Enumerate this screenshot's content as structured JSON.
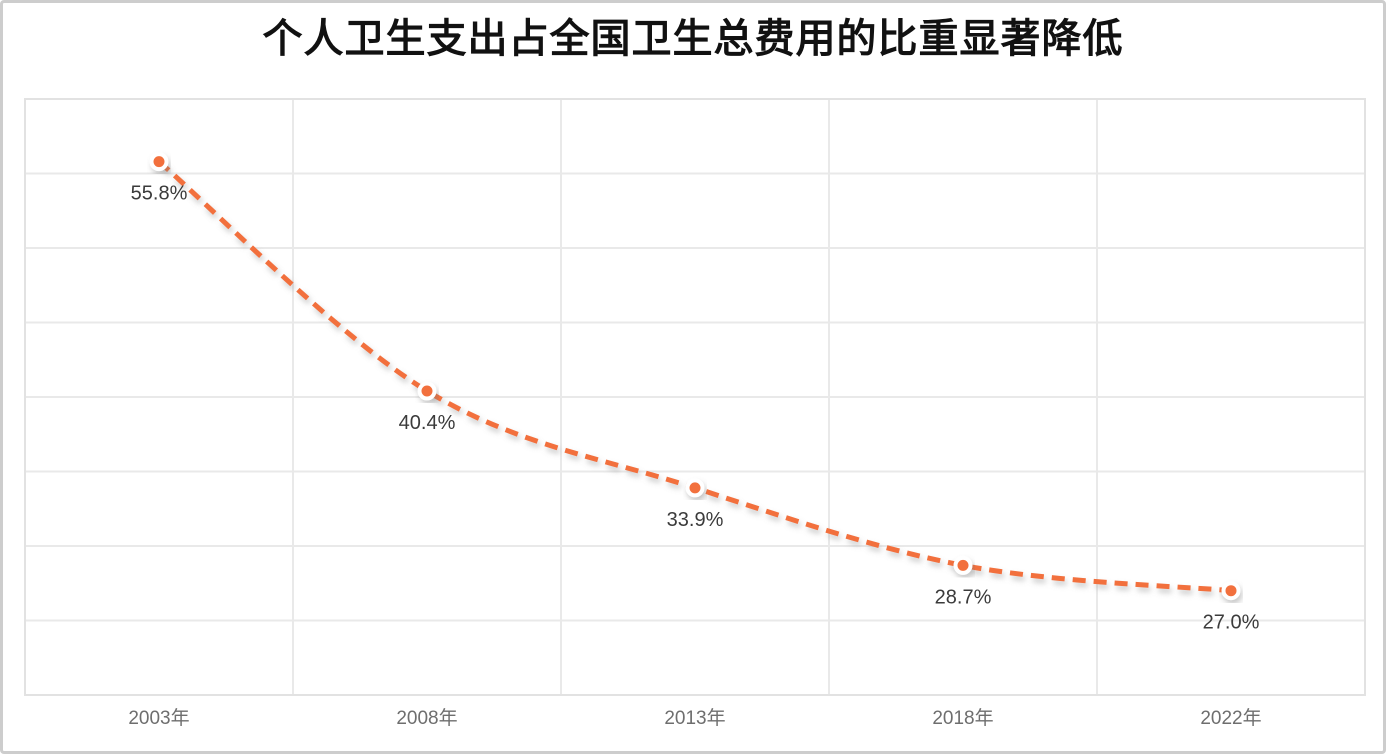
{
  "figure": {
    "title": "个人卫生支出占全国卫生总费用的比重显著降低"
  },
  "chart_data": {
    "type": "line",
    "line_style": "dashed-smooth",
    "title": "个人卫生支出占全国卫生总费用的比重显著降低",
    "categories": [
      "2003年",
      "2008年",
      "2013年",
      "2018年",
      "2022年"
    ],
    "series": [
      {
        "name": "个人卫生支出占全国卫生总费用的比重",
        "values": [
          55.8,
          40.4,
          33.9,
          28.7,
          27.0
        ],
        "data_labels": [
          "55.8%",
          "40.4%",
          "33.9%",
          "28.7%",
          "27.0%"
        ]
      }
    ],
    "xlabel": "",
    "ylabel": "",
    "ylim": [
      20,
      60
    ],
    "y_gridline_step": 5,
    "grid": true,
    "legend_position": "none",
    "y_axis_labels_visible": false,
    "colors": {
      "line": "#F2703D",
      "marker_fill": "#F2703D",
      "marker_ring": "#FFFFFF",
      "gridline": "#E9E9E9",
      "plot_border": "#E2E2E2",
      "outer_border": "#CDCDCD",
      "title_text": "#111111",
      "data_label_text": "#3B3B3B",
      "axis_label_text": "#6E6E6E",
      "background": "#FFFFFF"
    }
  }
}
